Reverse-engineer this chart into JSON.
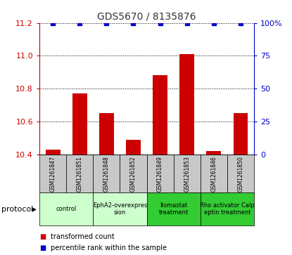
{
  "title": "GDS5670 / 8135876",
  "samples": [
    "GSM1261847",
    "GSM1261851",
    "GSM1261848",
    "GSM1261852",
    "GSM1261849",
    "GSM1261853",
    "GSM1261846",
    "GSM1261850"
  ],
  "transformed_counts": [
    10.43,
    10.77,
    10.65,
    10.49,
    10.88,
    11.01,
    10.42,
    10.65
  ],
  "percentile_ranks": [
    100,
    100,
    100,
    100,
    100,
    100,
    100,
    100
  ],
  "ylim_left": [
    10.4,
    11.2
  ],
  "yticks_left": [
    10.4,
    10.6,
    10.8,
    11.0,
    11.2
  ],
  "yticks_right": [
    0,
    25,
    50,
    75,
    100
  ],
  "ylim_right": [
    0,
    100
  ],
  "bar_color": "#cc0000",
  "dot_color": "#0000cc",
  "groups": [
    {
      "label": "control",
      "indices": [
        0,
        1
      ],
      "color": "#ccffcc"
    },
    {
      "label": "EphA2-overexpres\nsion",
      "indices": [
        2,
        3
      ],
      "color": "#ccffcc"
    },
    {
      "label": "Ilomastat\ntreatment",
      "indices": [
        4,
        5
      ],
      "color": "#33cc33"
    },
    {
      "label": "Rho activator Calp\neptin treatment",
      "indices": [
        6,
        7
      ],
      "color": "#33cc33"
    }
  ],
  "title_color": "#333333",
  "left_axis_color": "#cc0000",
  "right_axis_color": "#0000cc",
  "legend_bar_label": "transformed count",
  "legend_dot_label": "percentile rank within the sample",
  "protocol_label": "protocol",
  "background_gray": "#c8c8c8"
}
